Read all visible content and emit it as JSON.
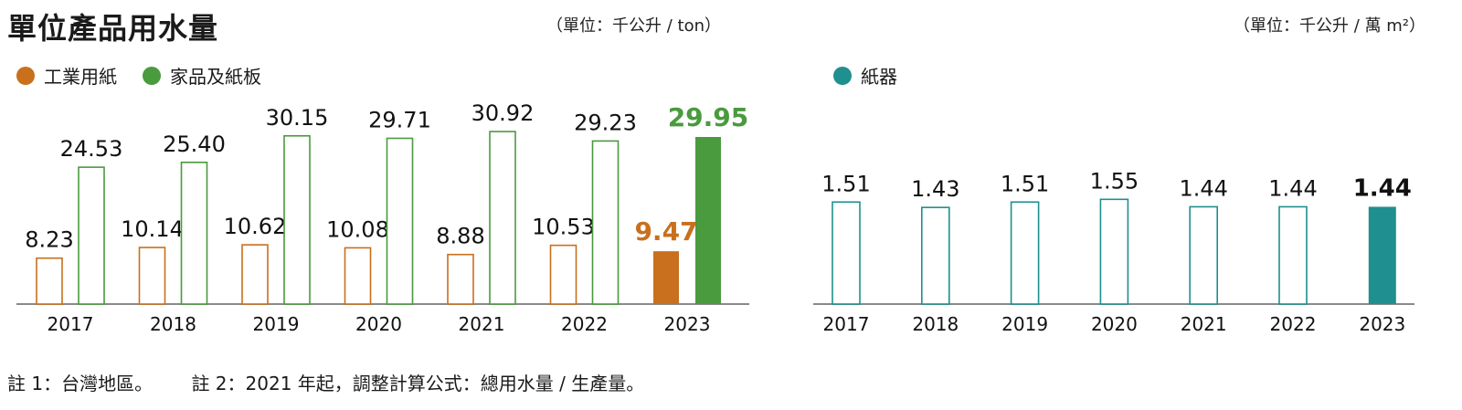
{
  "title": "單位產品用水量",
  "unit_left": "（單位：千公升 / ton）",
  "unit_right": "（單位：千公升 / 萬 m²）",
  "colors": {
    "industrial": "#c8701e",
    "household": "#4a9a3e",
    "paperware": "#1f8f8f"
  },
  "legend_left": [
    {
      "label": "工業用紙",
      "color": "#c8701e"
    },
    {
      "label": "家品及紙板",
      "color": "#4a9a3e"
    }
  ],
  "legend_right": [
    {
      "label": "紙器",
      "color": "#1f8f8f"
    }
  ],
  "notes": {
    "note1": "註 1：台灣地區。",
    "note2": "註 2：2021 年起，調整計算公式：總用水量 / 生產量。"
  },
  "chart_data": [
    {
      "type": "bar",
      "categories": [
        "2017",
        "2018",
        "2019",
        "2020",
        "2021",
        "2022",
        "2023"
      ],
      "series": [
        {
          "name": "工業用紙",
          "values": [
            8.23,
            10.14,
            10.62,
            10.08,
            8.88,
            10.53,
            9.47
          ],
          "labels": [
            "8.23",
            "10.14",
            "10.62",
            "10.08",
            "8.88",
            "10.53",
            "9.47"
          ]
        },
        {
          "name": "家品及紙板",
          "values": [
            24.53,
            25.4,
            30.15,
            29.71,
            30.92,
            29.23,
            29.95
          ],
          "labels": [
            "24.53",
            "25.40",
            "30.15",
            "29.71",
            "30.92",
            "29.23",
            "29.95"
          ]
        }
      ],
      "highlight_category": "2023",
      "ylim": [
        0,
        32
      ]
    },
    {
      "type": "bar",
      "categories": [
        "2017",
        "2018",
        "2019",
        "2020",
        "2021",
        "2022",
        "2023"
      ],
      "series": [
        {
          "name": "紙器",
          "values": [
            1.51,
            1.43,
            1.51,
            1.55,
            1.44,
            1.44,
            1.44
          ],
          "labels": [
            "1.51",
            "1.43",
            "1.51",
            "1.55",
            "1.44",
            "1.44",
            "1.44"
          ]
        }
      ],
      "highlight_category": "2023",
      "ylim": [
        0,
        2.25
      ]
    }
  ]
}
